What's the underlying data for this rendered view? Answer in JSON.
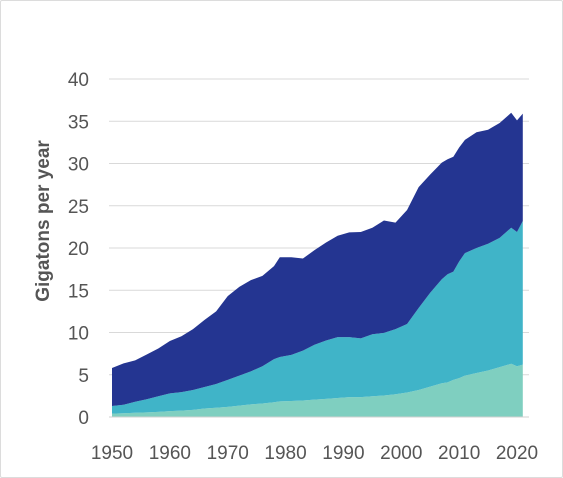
{
  "chart_data": {
    "type": "area",
    "stacked": true,
    "title": "",
    "xlabel": "",
    "ylabel": "Gigatons per year",
    "xlim": [
      1950,
      2021
    ],
    "ylim": [
      0,
      40
    ],
    "y_ticks": [
      0,
      5,
      10,
      15,
      20,
      25,
      30,
      35,
      40
    ],
    "x_ticks": [
      1950,
      1960,
      1970,
      1980,
      1990,
      2000,
      2010,
      2020
    ],
    "grid": "horizontal",
    "legend": "none",
    "x": [
      1950,
      1952,
      1954,
      1956,
      1958,
      1960,
      1962,
      1964,
      1966,
      1968,
      1970,
      1972,
      1974,
      1976,
      1978,
      1979,
      1981,
      1983,
      1985,
      1987,
      1989,
      1991,
      1993,
      1995,
      1997,
      1999,
      2001,
      2003,
      2005,
      2007,
      2008,
      2009,
      2010,
      2011,
      2013,
      2015,
      2017,
      2019,
      2020,
      2021
    ],
    "series": [
      {
        "color": "#7fcfc0",
        "values": [
          0.4,
          0.45,
          0.5,
          0.55,
          0.6,
          0.7,
          0.75,
          0.85,
          1.0,
          1.1,
          1.2,
          1.35,
          1.5,
          1.6,
          1.75,
          1.85,
          1.9,
          1.95,
          2.05,
          2.15,
          2.25,
          2.35,
          2.35,
          2.45,
          2.55,
          2.7,
          2.9,
          3.2,
          3.6,
          4.0,
          4.1,
          4.4,
          4.6,
          4.9,
          5.2,
          5.5,
          5.9,
          6.3,
          6.0,
          6.2
        ]
      },
      {
        "color": "#40b4c8",
        "values": [
          0.9,
          1.0,
          1.3,
          1.55,
          1.85,
          2.1,
          2.2,
          2.35,
          2.55,
          2.8,
          3.2,
          3.55,
          3.9,
          4.4,
          5.1,
          5.25,
          5.45,
          5.9,
          6.5,
          6.9,
          7.2,
          7.1,
          6.95,
          7.35,
          7.4,
          7.7,
          8.1,
          9.7,
          11.1,
          12.3,
          12.8,
          12.8,
          13.8,
          14.5,
          14.8,
          15.0,
          15.3,
          16.1,
          15.9,
          17.0
        ]
      },
      {
        "color": "#243591",
        "values": [
          4.5,
          4.9,
          4.9,
          5.3,
          5.65,
          6.2,
          6.6,
          7.2,
          7.95,
          8.6,
          9.9,
          10.5,
          10.8,
          10.7,
          11.0,
          11.8,
          11.55,
          10.9,
          11.2,
          11.6,
          12.0,
          12.4,
          12.6,
          12.6,
          13.3,
          12.6,
          13.5,
          14.3,
          14.0,
          13.8,
          13.6,
          13.6,
          13.5,
          13.4,
          13.7,
          13.5,
          13.6,
          13.6,
          13.2,
          12.7
        ]
      }
    ]
  }
}
